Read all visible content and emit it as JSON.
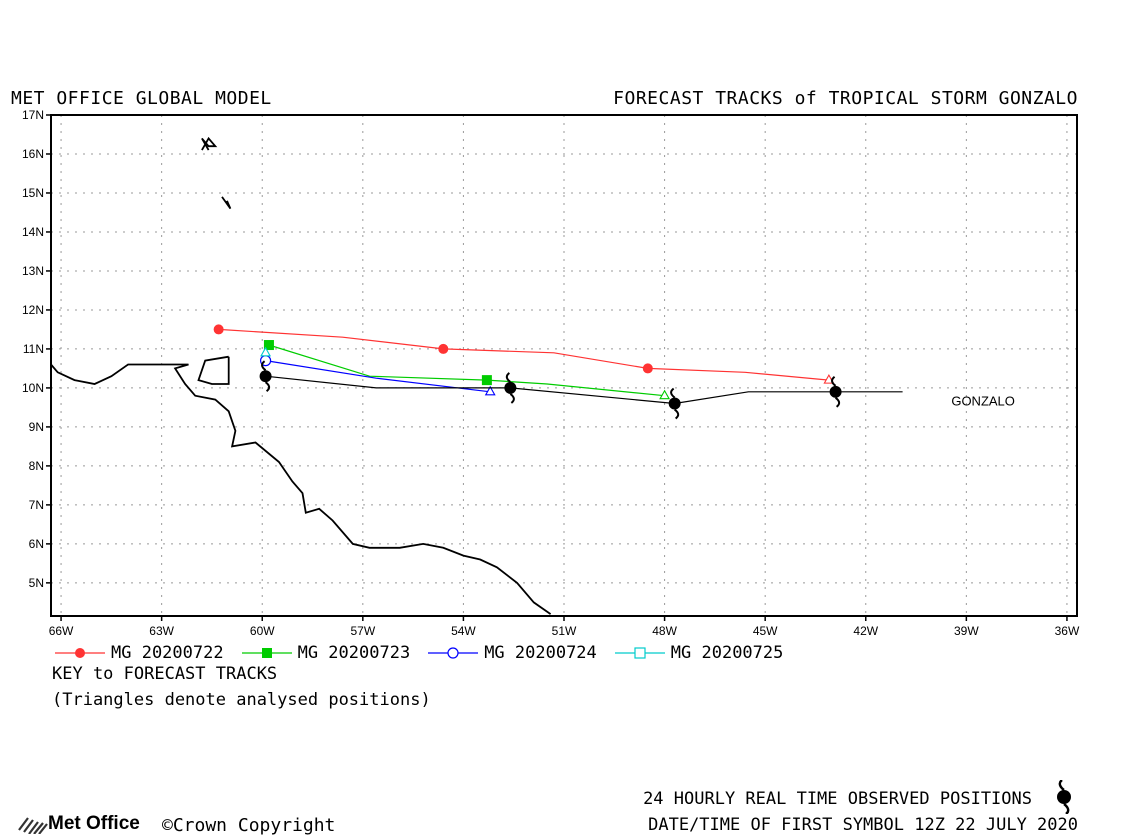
{
  "header": {
    "left_title": "MET OFFICE GLOBAL MODEL",
    "right_title": "FORECAST TRACKS of TROPICAL STORM GONZALO"
  },
  "chart_data": {
    "type": "line",
    "title": "FORECAST TRACKS of TROPICAL STORM GONZALO",
    "xlim": [
      -66.3,
      -35.7
    ],
    "ylim": [
      4.15,
      17.0
    ],
    "x_ticks": [
      -66,
      -63,
      -60,
      -57,
      -54,
      -51,
      -48,
      -45,
      -42,
      -39,
      -36
    ],
    "x_tick_labels": [
      "66W",
      "63W",
      "60W",
      "57W",
      "54W",
      "51W",
      "48W",
      "45W",
      "42W",
      "39W",
      "36W"
    ],
    "y_ticks": [
      5,
      6,
      7,
      8,
      9,
      10,
      11,
      12,
      13,
      14,
      15,
      16,
      17
    ],
    "y_tick_labels": [
      "5N",
      "6N",
      "7N",
      "8N",
      "9N",
      "10N",
      "11N",
      "12N",
      "13N",
      "14N",
      "15N",
      "16N",
      "17N"
    ],
    "grid": true,
    "series": [
      {
        "name": "MG 20200722",
        "color": "#ff3333",
        "marker": "filled-circle",
        "lon": [
          -43.1,
          -45.6,
          -48.5,
          -51.3,
          -54.6,
          -57.6,
          -61.3
        ],
        "lat": [
          10.2,
          10.4,
          10.5,
          10.9,
          11.0,
          11.3,
          11.5
        ],
        "marker_lon": [
          -48.5,
          -54.6,
          -61.3
        ],
        "marker_lat": [
          10.5,
          11.0,
          11.5
        ],
        "analysed": [
          -43.1,
          10.2
        ]
      },
      {
        "name": "MG 20200723",
        "color": "#00cc00",
        "marker": "filled-square",
        "lon": [
          -48.0,
          -51.5,
          -53.3,
          -56.8,
          -59.8
        ],
        "lat": [
          9.8,
          10.1,
          10.2,
          10.3,
          11.1
        ],
        "marker_lon": [
          -53.3,
          -59.8
        ],
        "marker_lat": [
          10.2,
          11.1
        ],
        "analysed": [
          -48.0,
          9.8
        ]
      },
      {
        "name": "MG 20200724",
        "color": "#0000ff",
        "marker": "open-circle",
        "lon": [
          -53.2,
          -56.6,
          -59.9
        ],
        "lat": [
          9.9,
          10.25,
          10.7
        ],
        "marker_lon": [
          -59.9
        ],
        "marker_lat": [
          10.7
        ],
        "analysed": [
          -53.2,
          9.9
        ]
      },
      {
        "name": "MG 20200725",
        "color": "#00cccc",
        "marker": "open-square",
        "lon": [],
        "lat": [],
        "marker_lon": [],
        "marker_lat": [],
        "analysed": [
          -59.9,
          10.9
        ]
      }
    ],
    "observed": {
      "label": "GONZALO",
      "lon": [
        -40.9,
        -42.6,
        -45.5,
        -47.7,
        -52.6,
        -56.6,
        -59.9
      ],
      "lat": [
        9.9,
        9.9,
        9.9,
        9.6,
        10.0,
        10.0,
        10.3
      ],
      "symbol_lon": [
        -42.9,
        -47.7,
        -52.6,
        -59.9
      ],
      "symbol_lat": [
        9.9,
        9.6,
        10.0,
        10.3
      ]
    }
  },
  "key": {
    "title": "KEY to FORECAST TRACKS",
    "note": "(Triangles denote analysed positions)"
  },
  "footer": {
    "observed_text": "24 HOURLY REAL TIME OBSERVED POSITIONS",
    "date_text": "DATE/TIME OF FIRST SYMBOL 12Z 22 JULY 2020",
    "logo_text": "Met Office",
    "copyright_text": "©Crown Copyright"
  }
}
